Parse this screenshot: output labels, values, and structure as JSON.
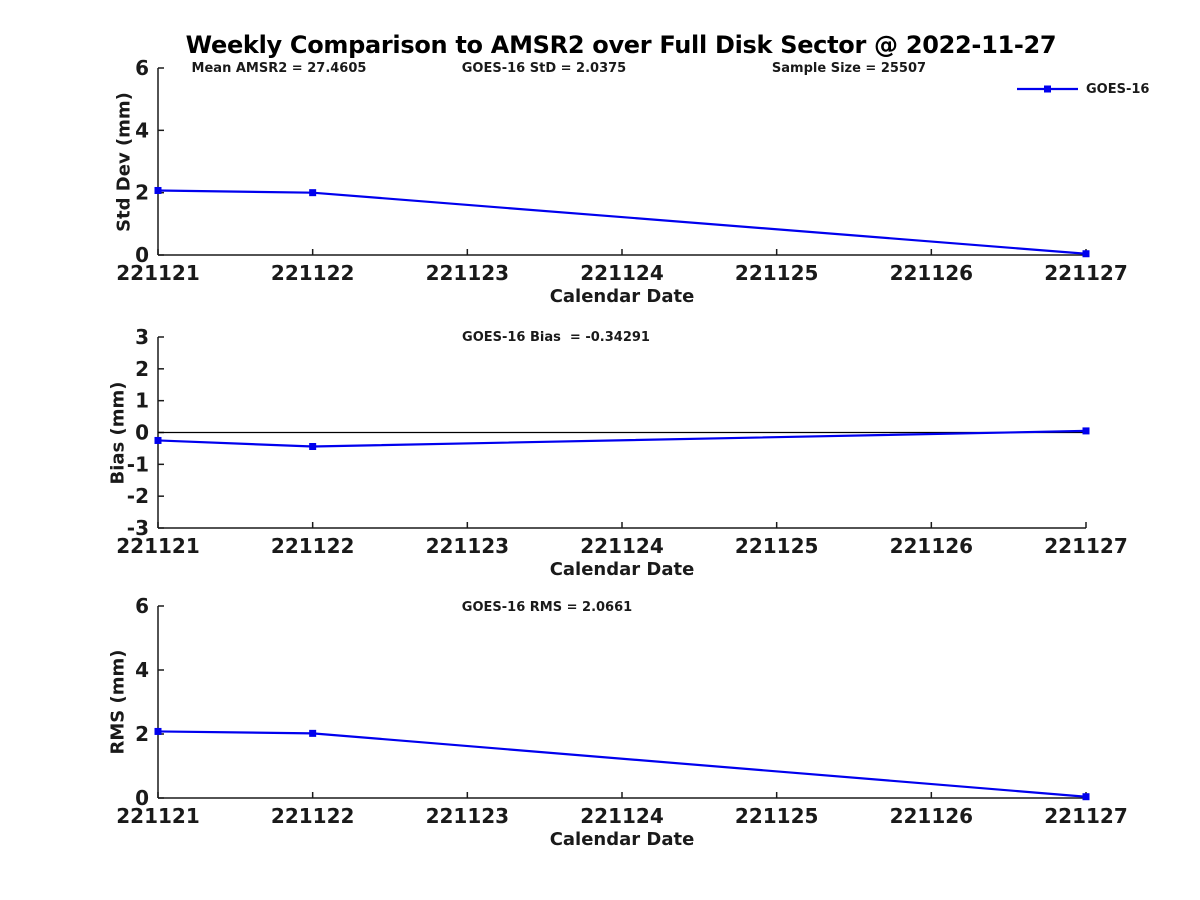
{
  "page": {
    "title": "Weekly Comparison to AMSR2 over Full Disk Sector @ 2022-11-27",
    "background": "#ffffff",
    "text_color": "#1a1a1a",
    "accent_blue": "#0000ee"
  },
  "legend": {
    "label": "GOES-16",
    "color": "#0000ee",
    "marker": "square"
  },
  "chart_data": [
    {
      "type": "line",
      "id": "std-dev",
      "ylabel": "Std Dev (mm)",
      "xlabel": "Calendar Date",
      "ylim": [
        0,
        6
      ],
      "yticks": [
        0,
        2,
        4,
        6
      ],
      "categories": [
        "221121",
        "221122",
        "221123",
        "221124",
        "221125",
        "221126",
        "221127"
      ],
      "annotations": [
        "Mean AMSR2 = 27.4605",
        "GOES-16 StD = 2.0375",
        "Sample Size = 25507"
      ],
      "grid": false,
      "zero_line": false,
      "legend_position": "top-right-outside",
      "series": [
        {
          "name": "GOES-16",
          "color": "#0000ee",
          "marker": "square",
          "points": [
            {
              "x": "221121",
              "y": 2.07
            },
            {
              "x": "221122",
              "y": 2.0
            },
            {
              "x": "221127",
              "y": 0.04
            }
          ]
        }
      ]
    },
    {
      "type": "line",
      "id": "bias",
      "ylabel": "Bias (mm)",
      "xlabel": "Calendar Date",
      "ylim": [
        -3,
        3
      ],
      "yticks": [
        -3,
        -2,
        -1,
        0,
        1,
        2,
        3
      ],
      "categories": [
        "221121",
        "221122",
        "221123",
        "221124",
        "221125",
        "221126",
        "221127"
      ],
      "annotations": [
        "GOES-16 Bias  = -0.34291"
      ],
      "grid": false,
      "zero_line": true,
      "series": [
        {
          "name": "GOES-16",
          "color": "#0000ee",
          "marker": "square",
          "points": [
            {
              "x": "221121",
              "y": -0.25
            },
            {
              "x": "221122",
              "y": -0.44
            },
            {
              "x": "221127",
              "y": 0.05
            }
          ]
        }
      ]
    },
    {
      "type": "line",
      "id": "rms",
      "ylabel": "RMS (mm)",
      "xlabel": "Calendar Date",
      "ylim": [
        0,
        6
      ],
      "yticks": [
        0,
        2,
        4,
        6
      ],
      "categories": [
        "221121",
        "221122",
        "221123",
        "221124",
        "221125",
        "221126",
        "221127"
      ],
      "annotations": [
        "GOES-16 RMS = 2.0661"
      ],
      "grid": false,
      "zero_line": false,
      "series": [
        {
          "name": "GOES-16",
          "color": "#0000ee",
          "marker": "square",
          "points": [
            {
              "x": "221121",
              "y": 2.08
            },
            {
              "x": "221122",
              "y": 2.02
            },
            {
              "x": "221127",
              "y": 0.04
            }
          ]
        }
      ]
    }
  ]
}
